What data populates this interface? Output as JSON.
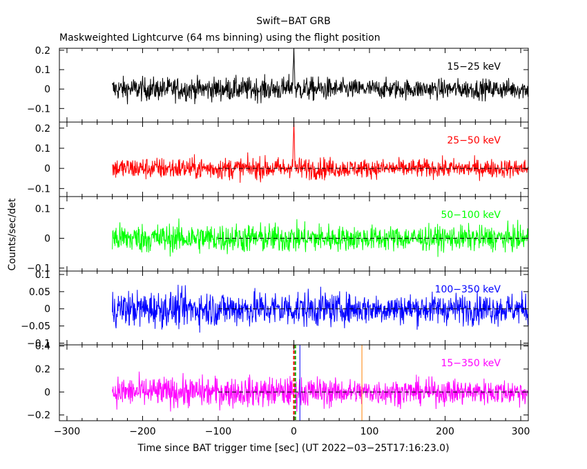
{
  "chart_data": {
    "type": "line",
    "title": "Swift−BAT GRB",
    "subtitle": "Maskweighted Lightcurve (64 ms binning) using the flight position",
    "xlabel": "Time since BAT trigger time [sec] (UT 2022−03−25T17:16:23.0)",
    "ylabel": "Counts/sec/det",
    "xlim": [
      -310,
      310
    ],
    "x_ticks": [
      -300,
      -200,
      -100,
      0,
      100,
      200,
      300
    ],
    "x_tick_labels": [
      "−300",
      "−200",
      "−100",
      "0",
      "100",
      "200",
      "300"
    ],
    "data_range": [
      -240,
      310
    ],
    "baseline_start": -100,
    "panels": [
      {
        "name": "15−25 keV",
        "color": "#000000",
        "ylim": [
          -0.17,
          0.21
        ],
        "y_ticks": [
          -0.1,
          0,
          0.1,
          0.2
        ],
        "y_tick_labels": [
          "−0.1",
          "0",
          "0.1",
          "0.2"
        ],
        "noise_amplitude": 0.055,
        "spike": {
          "x": 0,
          "value": 0.2
        },
        "baseline": false
      },
      {
        "name": "25−50 keV",
        "color": "#ff0000",
        "ylim": [
          -0.14,
          0.23
        ],
        "y_ticks": [
          -0.1,
          0,
          0.1,
          0.2
        ],
        "y_tick_labels": [
          "−0.1",
          "0",
          "0.1",
          "0.2"
        ],
        "noise_amplitude": 0.05,
        "spike": {
          "x": 0,
          "value": 0.22
        },
        "baseline": true
      },
      {
        "name": "50−100 keV",
        "color": "#00ff00",
        "ylim": [
          -0.11,
          0.14
        ],
        "y_ticks": [
          -0.1,
          0,
          0.1
        ],
        "y_tick_labels": [
          "−0.1",
          "0",
          "0.1"
        ],
        "noise_amplitude": 0.045,
        "spike": null,
        "baseline": true
      },
      {
        "name": "100−350 keV",
        "color": "#0000ff",
        "ylim": [
          -0.105,
          0.11
        ],
        "y_ticks": [
          -0.1,
          -0.05,
          0,
          0.05,
          0.1
        ],
        "y_tick_labels": [
          "−0.1",
          "−0.05",
          "0",
          "0.05",
          "0.1"
        ],
        "noise_amplitude": 0.048,
        "spike": null,
        "baseline": true
      },
      {
        "name": "15−350 keV",
        "color": "#ff00ff",
        "ylim": [
          -0.25,
          0.41
        ],
        "y_ticks": [
          -0.2,
          0,
          0.2,
          0.4
        ],
        "y_tick_labels": [
          "−0.2",
          "0",
          "0.2",
          "0.4"
        ],
        "noise_amplitude": 0.12,
        "spike": null,
        "baseline": true,
        "markers": [
          {
            "x": 0,
            "color": "#ff0000",
            "style": "dashed"
          },
          {
            "x": 2,
            "color": "#00aa00",
            "style": "dashed"
          },
          {
            "x": 8,
            "color": "#0000ff",
            "style": "solid"
          },
          {
            "x": 90,
            "color": "#ff8000",
            "style": "solid"
          }
        ]
      }
    ]
  }
}
